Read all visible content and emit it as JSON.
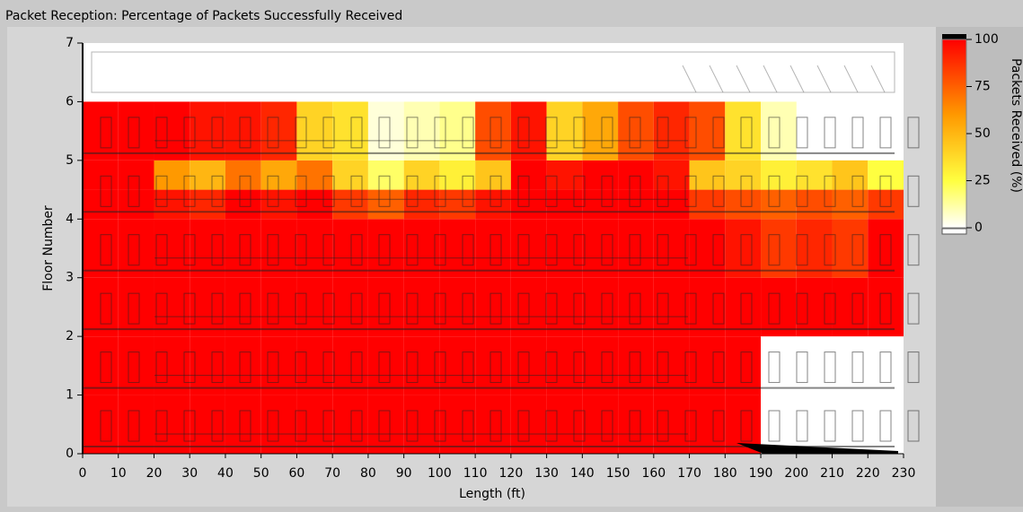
{
  "chart_data": {
    "type": "heatmap",
    "title": "Packet Reception: Percentage of Packets Successfully Received",
    "x_label": "Length (ft)",
    "y_label": "Floor Number",
    "colorbar_label": "Packets Received (%)",
    "xbins": [
      0,
      10,
      20,
      30,
      40,
      50,
      60,
      70,
      80,
      90,
      100,
      110,
      120,
      130,
      140,
      150,
      160,
      170,
      180,
      190,
      200,
      210,
      220,
      230
    ],
    "ybins": [
      0,
      1,
      2,
      3,
      4,
      4.5,
      5,
      6
    ],
    "values": [
      [
        100,
        100,
        100,
        100,
        100,
        100,
        100,
        100,
        100,
        100,
        100,
        100,
        100,
        100,
        100,
        100,
        100,
        100,
        100,
        null,
        null,
        null,
        null
      ],
      [
        100,
        100,
        100,
        100,
        100,
        100,
        100,
        100,
        100,
        100,
        100,
        100,
        100,
        100,
        100,
        100,
        100,
        100,
        100,
        null,
        null,
        null,
        null
      ],
      [
        100,
        100,
        100,
        100,
        100,
        100,
        100,
        100,
        100,
        100,
        100,
        100,
        100,
        100,
        100,
        100,
        100,
        100,
        100,
        100,
        100,
        100,
        100
      ],
      [
        100,
        100,
        100,
        100,
        100,
        100,
        100,
        100,
        100,
        100,
        100,
        100,
        100,
        100,
        100,
        100,
        100,
        100,
        95,
        85,
        90,
        85,
        100
      ],
      [
        100,
        100,
        95,
        90,
        100,
        95,
        100,
        85,
        75,
        90,
        85,
        95,
        100,
        100,
        100,
        100,
        100,
        85,
        80,
        75,
        80,
        75,
        85
      ],
      [
        100,
        100,
        60,
        50,
        70,
        55,
        70,
        40,
        20,
        40,
        30,
        45,
        100,
        95,
        100,
        100,
        95,
        45,
        40,
        30,
        35,
        45,
        25
      ],
      [
        100,
        100,
        100,
        95,
        95,
        90,
        40,
        35,
        5,
        10,
        15,
        80,
        95,
        40,
        55,
        80,
        90,
        80,
        35,
        10,
        null,
        null,
        null
      ]
    ],
    "xlim": [
      0,
      230
    ],
    "xticks": [
      0,
      10,
      20,
      30,
      40,
      50,
      60,
      70,
      80,
      90,
      100,
      110,
      120,
      130,
      140,
      150,
      160,
      170,
      180,
      190,
      200,
      210,
      220,
      230
    ],
    "ylim": [
      0,
      7
    ],
    "yticks": [
      0,
      1,
      2,
      3,
      4,
      5,
      6,
      7
    ],
    "clim": [
      0,
      100
    ],
    "cticks": [
      0,
      25,
      50,
      75,
      100
    ],
    "colorscale": [
      [
        0,
        "#ffffff"
      ],
      [
        25,
        "#ffff40"
      ],
      [
        60,
        "#ff9900"
      ],
      [
        100,
        "#ff0000"
      ]
    ]
  }
}
